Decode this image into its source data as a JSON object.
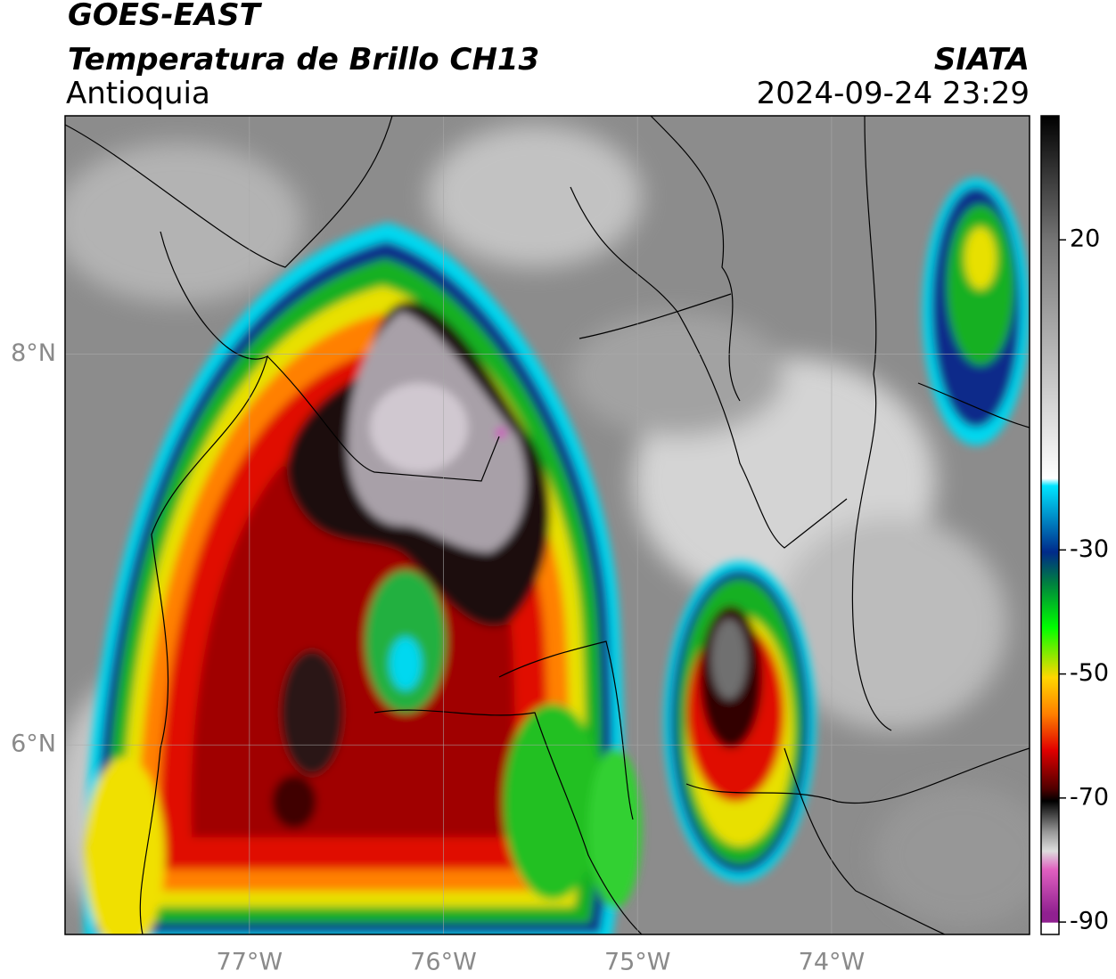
{
  "chart_data": {
    "type": "map",
    "title": "GOES-EAST",
    "subtitle": "Temperatura de Brillo CH13",
    "region": "Antioquia",
    "source": "SIATA",
    "datetime": "2024-09-24 23:29",
    "xlim": [
      -77.95,
      -72.98
    ],
    "ylim": [
      5.03,
      9.22
    ],
    "xticks": [
      {
        "value": -77,
        "label": "77°W"
      },
      {
        "value": -76,
        "label": "76°W"
      },
      {
        "value": -75,
        "label": "75°W"
      },
      {
        "value": -74,
        "label": "74°W"
      }
    ],
    "yticks": [
      {
        "value": 6,
        "label": "6°N"
      },
      {
        "value": 8,
        "label": "8°N"
      }
    ],
    "grid": true,
    "colorbar": {
      "clim": [
        -92,
        40
      ],
      "ticks": [
        20,
        -30,
        -50,
        -70,
        -90
      ]
    }
  }
}
